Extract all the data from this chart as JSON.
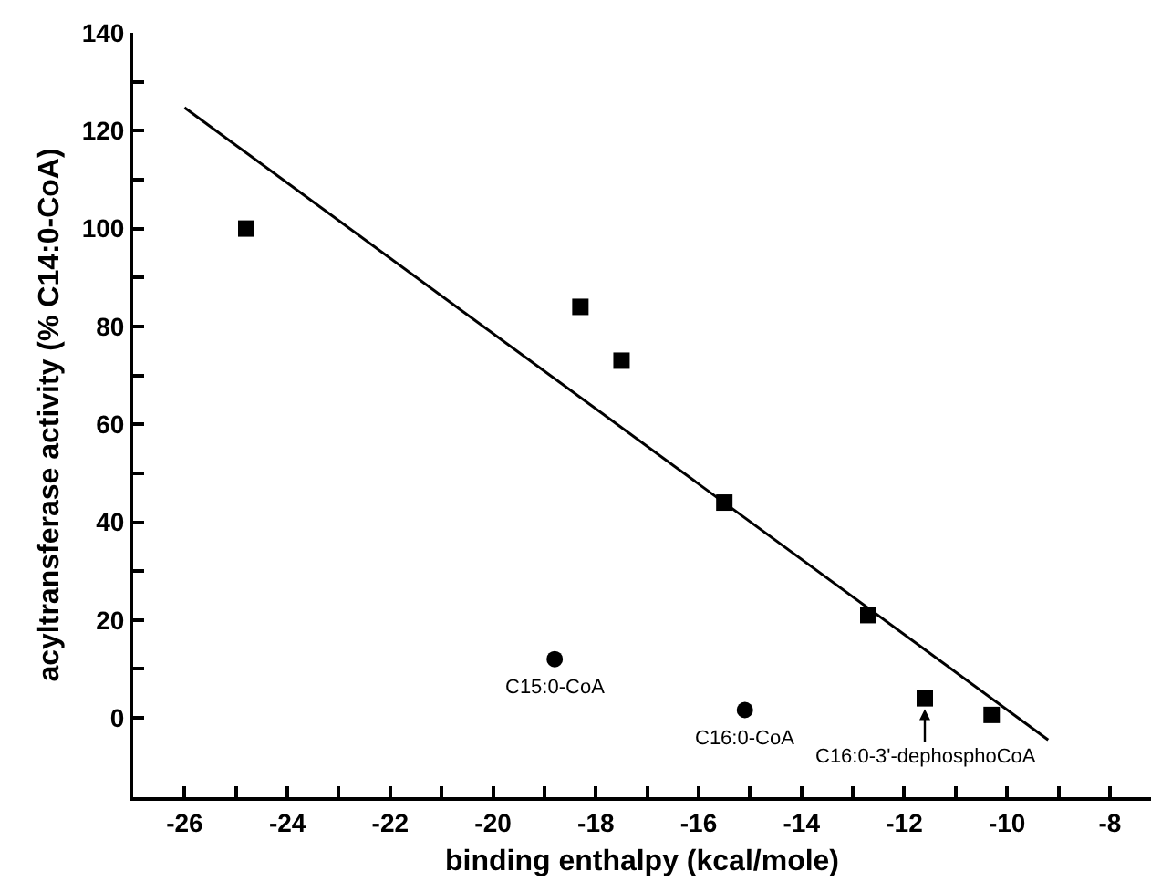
{
  "chart_data": {
    "type": "scatter",
    "xlabel": "binding enthalpy (kcal/mole)",
    "ylabel": "acyltransferase activity (% C14:0-CoA)",
    "xlim": [
      -27,
      -7.2
    ],
    "ylim": [
      -16.2,
      140
    ],
    "xticks": [
      -26,
      {
        "value": -25,
        "label": null
      },
      -24,
      {
        "value": -23,
        "label": null
      },
      -22,
      {
        "value": -21,
        "label": null
      },
      -20,
      {
        "value": -19,
        "label": null
      },
      -18,
      {
        "value": -17,
        "label": null
      },
      -16,
      {
        "value": -15,
        "label": null
      },
      -14,
      {
        "value": -13,
        "label": null
      },
      -12,
      {
        "value": -11,
        "label": null
      },
      -10,
      {
        "value": -9,
        "label": null
      },
      -8
    ],
    "yticks": [
      0,
      {
        "value": 10,
        "label": null
      },
      20,
      {
        "value": 30,
        "label": null
      },
      40,
      {
        "value": 50,
        "label": null
      },
      60,
      {
        "value": 70,
        "label": null
      },
      80,
      {
        "value": 90,
        "label": null
      },
      100,
      {
        "value": 110,
        "label": null
      },
      120,
      {
        "value": 130,
        "label": null
      },
      140
    ],
    "series": [
      {
        "marker": "square",
        "color": "#000000",
        "x": [
          -24.8,
          -18.3,
          -17.5,
          -15.5,
          -12.7,
          -11.6,
          -10.3
        ],
        "values": [
          100,
          84,
          73,
          44,
          21,
          4,
          0.6
        ]
      },
      {
        "marker": "circle",
        "color": "#000000",
        "x": [
          -18.8,
          -15.1
        ],
        "values": [
          12,
          1.6
        ]
      },
      {
        "type": "line",
        "marker": "none",
        "line_style": "solid",
        "color": "#000000",
        "x": [
          -26,
          -9.2
        ],
        "values": [
          124.7,
          -4.5
        ]
      }
    ],
    "annotations": [
      {
        "text": "C15:0-CoA",
        "x": -18.8,
        "y": 12
      },
      {
        "text": "C16:0-CoA",
        "x": -15.1,
        "y": 1.6
      },
      {
        "text": "C16:0-3'-dephosphoCoA",
        "x": -11.6,
        "y": 4
      }
    ]
  }
}
